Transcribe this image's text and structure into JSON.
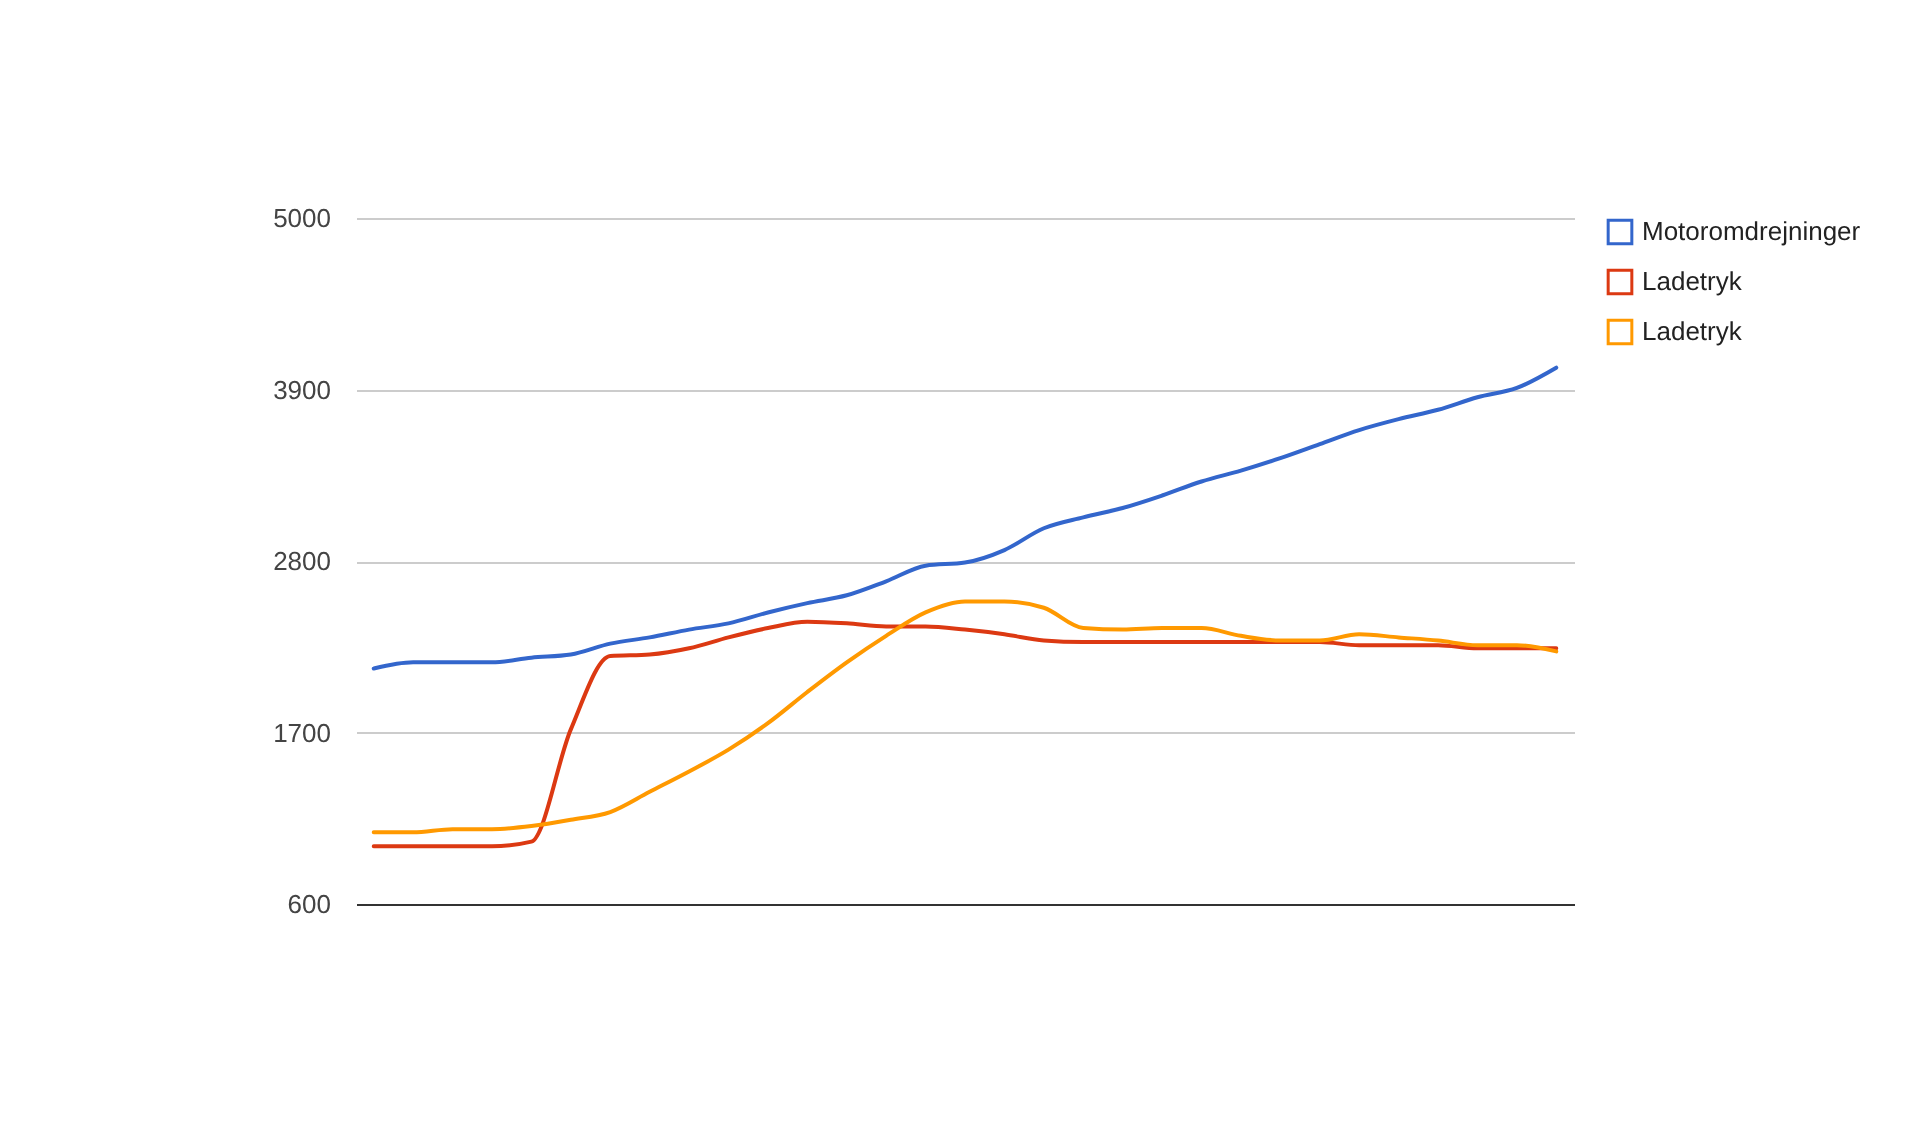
{
  "chart_data": {
    "type": "line",
    "categories": [
      null,
      null,
      null,
      null,
      null,
      null,
      null,
      null,
      null,
      null,
      null,
      null,
      null,
      null,
      null,
      null,
      null,
      null,
      null,
      null,
      null,
      null,
      null,
      null,
      null,
      null,
      null,
      null,
      null,
      null,
      null
    ],
    "series": [
      {
        "name": "Motoromdrejninger",
        "color": "#3366cc",
        "values": [
          2110,
          2150,
          2150,
          2150,
          2180,
          2200,
          2270,
          2310,
          2360,
          2400,
          2470,
          2530,
          2580,
          2670,
          2770,
          2790,
          2870,
          3010,
          3080,
          3140,
          3220,
          3310,
          3380,
          3460,
          3550,
          3640,
          3710,
          3770,
          3850,
          3910,
          4040
        ]
      },
      {
        "name": "Ladetryk",
        "color": "#dc3912",
        "values": [
          970,
          970,
          970,
          970,
          1000,
          1720,
          2190,
          2200,
          2240,
          2310,
          2370,
          2410,
          2400,
          2380,
          2380,
          2360,
          2330,
          2290,
          2280,
          2280,
          2280,
          2280,
          2280,
          2280,
          2280,
          2260,
          2260,
          2260,
          2240,
          2240,
          2240
        ]
      },
      {
        "name": "Ladetryk",
        "color": "#ff9900",
        "values": [
          1060,
          1060,
          1080,
          1080,
          1100,
          1140,
          1190,
          1320,
          1450,
          1590,
          1760,
          1960,
          2150,
          2320,
          2470,
          2540,
          2540,
          2500,
          2370,
          2360,
          2370,
          2370,
          2320,
          2290,
          2290,
          2330,
          2310,
          2290,
          2260,
          2260,
          2220
        ]
      }
    ],
    "ylim": [
      600,
      5000
    ],
    "yticks": [
      600,
      1700,
      2800,
      3900,
      5000
    ],
    "grid": "y",
    "legend": "top right",
    "tick_labels": "y"
  }
}
